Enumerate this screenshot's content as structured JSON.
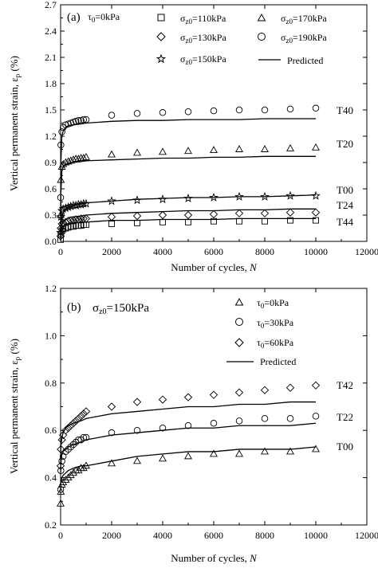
{
  "chart_data": [
    {
      "type": "scatter",
      "panel_label": "(a)",
      "condition": "τ0=0kPa",
      "xlabel": "Number of cycles, N",
      "ylabel": "Vertical permanent strain, εp (%)",
      "xlim": [
        0,
        12000
      ],
      "ylim": [
        0.0,
        2.7
      ],
      "xticks": [
        "0",
        "2000",
        "4000",
        "6000",
        "8000",
        "10000",
        "12000"
      ],
      "yticks": [
        "0.0",
        "0.3",
        "0.6",
        "0.9",
        "1.2",
        "1.5",
        "1.8",
        "2.1",
        "2.4",
        "2.7"
      ],
      "legend": [
        "σz0=110kPa",
        "σz0=170kPa",
        "σz0=130kPa",
        "σz0=190kPa",
        "σz0=150kPa",
        "Predicted"
      ],
      "legend_position": "top-right",
      "x": [
        1,
        10,
        50,
        100,
        200,
        300,
        400,
        500,
        600,
        700,
        800,
        900,
        1000,
        2000,
        3000,
        4000,
        5000,
        6000,
        7000,
        8000,
        9000,
        10000
      ],
      "series": [
        {
          "name": "σz0=110kPa",
          "marker": "square",
          "values": [
            0.02,
            0.08,
            0.12,
            0.14,
            0.15,
            0.16,
            0.17,
            0.17,
            0.18,
            0.18,
            0.18,
            0.19,
            0.19,
            0.2,
            0.21,
            0.22,
            0.22,
            0.23,
            0.23,
            0.23,
            0.24,
            0.24
          ]
        },
        {
          "name": "σz0=130kPa",
          "marker": "diamond",
          "values": [
            0.06,
            0.15,
            0.2,
            0.21,
            0.22,
            0.23,
            0.24,
            0.24,
            0.25,
            0.25,
            0.26,
            0.26,
            0.26,
            0.28,
            0.29,
            0.3,
            0.3,
            0.31,
            0.32,
            0.32,
            0.33,
            0.33
          ]
        },
        {
          "name": "σz0=150kPa",
          "marker": "star",
          "values": [
            0.1,
            0.28,
            0.35,
            0.37,
            0.38,
            0.39,
            0.4,
            0.41,
            0.41,
            0.42,
            0.42,
            0.43,
            0.43,
            0.46,
            0.47,
            0.48,
            0.49,
            0.5,
            0.51,
            0.51,
            0.52,
            0.52
          ]
        },
        {
          "name": "σz0=170kPa",
          "marker": "triangle",
          "values": [
            0.3,
            0.7,
            0.85,
            0.88,
            0.9,
            0.91,
            0.92,
            0.93,
            0.94,
            0.94,
            0.95,
            0.95,
            0.96,
            0.99,
            1.01,
            1.02,
            1.03,
            1.04,
            1.05,
            1.05,
            1.06,
            1.07
          ]
        },
        {
          "name": "σz0=190kPa",
          "marker": "circle",
          "values": [
            0.5,
            1.1,
            1.25,
            1.3,
            1.33,
            1.34,
            1.35,
            1.36,
            1.37,
            1.38,
            1.38,
            1.39,
            1.39,
            1.44,
            1.46,
            1.47,
            1.48,
            1.49,
            1.5,
            1.5,
            1.51,
            1.52
          ]
        }
      ],
      "predicted": {
        "x": [
          1,
          10,
          50,
          100,
          200,
          300,
          500,
          800,
          1000,
          2000,
          3000,
          4000,
          5000,
          6000,
          7000,
          8000,
          9000,
          10000
        ],
        "series": [
          {
            "label": "T44",
            "values": [
              0.01,
              0.06,
              0.13,
              0.16,
              0.19,
              0.2,
              0.21,
              0.22,
              0.22,
              0.24,
              0.24,
              0.25,
              0.25,
              0.25,
              0.26,
              0.26,
              0.26,
              0.26
            ]
          },
          {
            "label": "T24",
            "values": [
              0.02,
              0.1,
              0.19,
              0.22,
              0.25,
              0.27,
              0.28,
              0.29,
              0.3,
              0.32,
              0.33,
              0.34,
              0.35,
              0.35,
              0.36,
              0.36,
              0.37,
              0.37
            ]
          },
          {
            "label": "T00",
            "values": [
              0.03,
              0.16,
              0.28,
              0.33,
              0.37,
              0.39,
              0.41,
              0.43,
              0.44,
              0.46,
              0.48,
              0.49,
              0.5,
              0.5,
              0.51,
              0.51,
              0.52,
              0.53
            ]
          },
          {
            "label": "T20",
            "values": [
              0.1,
              0.55,
              0.8,
              0.85,
              0.88,
              0.89,
              0.9,
              0.91,
              0.92,
              0.93,
              0.94,
              0.95,
              0.95,
              0.96,
              0.96,
              0.97,
              0.97,
              0.97
            ]
          },
          {
            "label": "T40",
            "values": [
              0.2,
              0.9,
              1.2,
              1.26,
              1.3,
              1.32,
              1.33,
              1.34,
              1.35,
              1.37,
              1.38,
              1.38,
              1.39,
              1.39,
              1.39,
              1.4,
              1.4,
              1.4
            ]
          }
        ]
      },
      "curve_labels": [
        "T40",
        "T20",
        "T00",
        "T24",
        "T44"
      ]
    },
    {
      "type": "scatter",
      "panel_label": "(b)",
      "condition": "σz0=150kPa",
      "xlabel": "Number of cycles, N",
      "ylabel": "Vertical permanent strain, εp (%)",
      "xlim": [
        0,
        12000
      ],
      "ylim": [
        0.2,
        1.2
      ],
      "xticks": [
        "0",
        "2000",
        "4000",
        "6000",
        "8000",
        "10000",
        "12000"
      ],
      "yticks": [
        "0.2",
        "0.4",
        "0.6",
        "0.8",
        "1.0",
        "1.2"
      ],
      "legend": [
        "τ0=0kPa",
        "τ0=30kPa",
        "τ0=60kPa",
        "Predicted"
      ],
      "legend_position": "top-right",
      "x": [
        1,
        10,
        50,
        100,
        200,
        300,
        400,
        500,
        600,
        700,
        800,
        900,
        1000,
        2000,
        3000,
        4000,
        5000,
        6000,
        7000,
        8000,
        9000,
        10000
      ],
      "series": [
        {
          "name": "τ0=0kPa",
          "marker": "triangle",
          "values": [
            0.29,
            0.34,
            0.37,
            0.38,
            0.39,
            0.4,
            0.41,
            0.42,
            0.43,
            0.43,
            0.44,
            0.44,
            0.45,
            0.46,
            0.47,
            0.48,
            0.49,
            0.5,
            0.5,
            0.51,
            0.51,
            0.52
          ]
        },
        {
          "name": "τ0=30kPa",
          "marker": "circle",
          "values": [
            0.35,
            0.43,
            0.47,
            0.49,
            0.51,
            0.52,
            0.53,
            0.54,
            0.55,
            0.56,
            0.56,
            0.57,
            0.57,
            0.59,
            0.6,
            0.61,
            0.62,
            0.63,
            0.64,
            0.65,
            0.65,
            0.66
          ]
        },
        {
          "name": "τ0=60kPa",
          "marker": "diamond",
          "values": [
            0.45,
            0.52,
            0.56,
            0.58,
            0.6,
            0.61,
            0.62,
            0.63,
            0.64,
            0.65,
            0.66,
            0.67,
            0.68,
            0.7,
            0.72,
            0.73,
            0.74,
            0.75,
            0.76,
            0.77,
            0.78,
            0.79
          ]
        }
      ],
      "predicted": {
        "x": [
          1,
          10,
          50,
          100,
          200,
          300,
          500,
          800,
          1000,
          2000,
          3000,
          4000,
          5000,
          6000,
          7000,
          8000,
          9000,
          10000
        ],
        "series": [
          {
            "label": "T00",
            "values": [
              0.36,
              0.38,
              0.4,
              0.41,
              0.42,
              0.43,
              0.44,
              0.45,
              0.45,
              0.47,
              0.49,
              0.5,
              0.51,
              0.51,
              0.52,
              0.52,
              0.52,
              0.53
            ]
          },
          {
            "label": "T22",
            "values": [
              0.42,
              0.46,
              0.5,
              0.51,
              0.52,
              0.53,
              0.54,
              0.55,
              0.56,
              0.58,
              0.59,
              0.6,
              0.61,
              0.61,
              0.62,
              0.62,
              0.62,
              0.63
            ]
          },
          {
            "label": "T42",
            "values": [
              0.48,
              0.53,
              0.57,
              0.59,
              0.61,
              0.62,
              0.63,
              0.64,
              0.65,
              0.67,
              0.68,
              0.69,
              0.7,
              0.7,
              0.71,
              0.71,
              0.72,
              0.72
            ]
          }
        ]
      },
      "curve_labels": [
        "T42",
        "T22",
        "T00"
      ]
    }
  ]
}
